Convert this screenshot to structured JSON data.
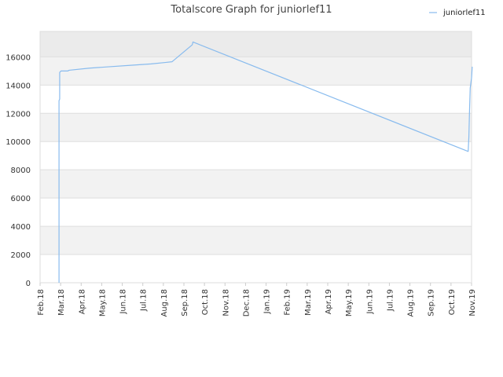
{
  "chart_data": {
    "type": "line",
    "title": "Totalscore Graph for juniorlef11",
    "xlabel": "",
    "ylabel": "",
    "x_ticks": [
      "Feb.18",
      "Mar.18",
      "Apr.18",
      "May.18",
      "Jun.18",
      "Jul.18",
      "Aug.18",
      "Sep.18",
      "Oct.18",
      "Nov.18",
      "Dec.18",
      "Jan.19",
      "Feb.19",
      "Mar.19",
      "Apr.19",
      "May.19",
      "Jun.19",
      "Jul.19",
      "Aug.19",
      "Sep.19",
      "Oct.19",
      "Nov.19"
    ],
    "y_ticks": [
      0,
      2000,
      4000,
      6000,
      8000,
      10000,
      12000,
      14000,
      16000
    ],
    "ylim": [
      0,
      17800
    ],
    "grid": true,
    "legend_position": "top-right",
    "series": [
      {
        "name": "juniorlef11",
        "color": "#88bbee",
        "points": [
          {
            "x": "2018-03-01",
            "y": 0
          },
          {
            "x": "2018-03-01",
            "y": 12900
          },
          {
            "x": "2018-03-02",
            "y": 13000
          },
          {
            "x": "2018-03-02",
            "y": 14900
          },
          {
            "x": "2018-03-04",
            "y": 15000
          },
          {
            "x": "2018-03-14",
            "y": 15000
          },
          {
            "x": "2018-03-16",
            "y": 15050
          },
          {
            "x": "2018-04-15",
            "y": 15200
          },
          {
            "x": "2018-05-15",
            "y": 15300
          },
          {
            "x": "2018-06-15",
            "y": 15400
          },
          {
            "x": "2018-07-15",
            "y": 15500
          },
          {
            "x": "2018-08-05",
            "y": 15600
          },
          {
            "x": "2018-08-15",
            "y": 15650
          },
          {
            "x": "2018-09-14",
            "y": 16850
          },
          {
            "x": "2018-09-15",
            "y": 17050
          },
          {
            "x": "2019-10-27",
            "y": 9300
          },
          {
            "x": "2019-10-28",
            "y": 10300
          },
          {
            "x": "2019-10-29",
            "y": 12200
          },
          {
            "x": "2019-10-30",
            "y": 13800
          },
          {
            "x": "2019-11-01",
            "y": 14500
          },
          {
            "x": "2019-11-02",
            "y": 15300
          }
        ]
      }
    ]
  }
}
